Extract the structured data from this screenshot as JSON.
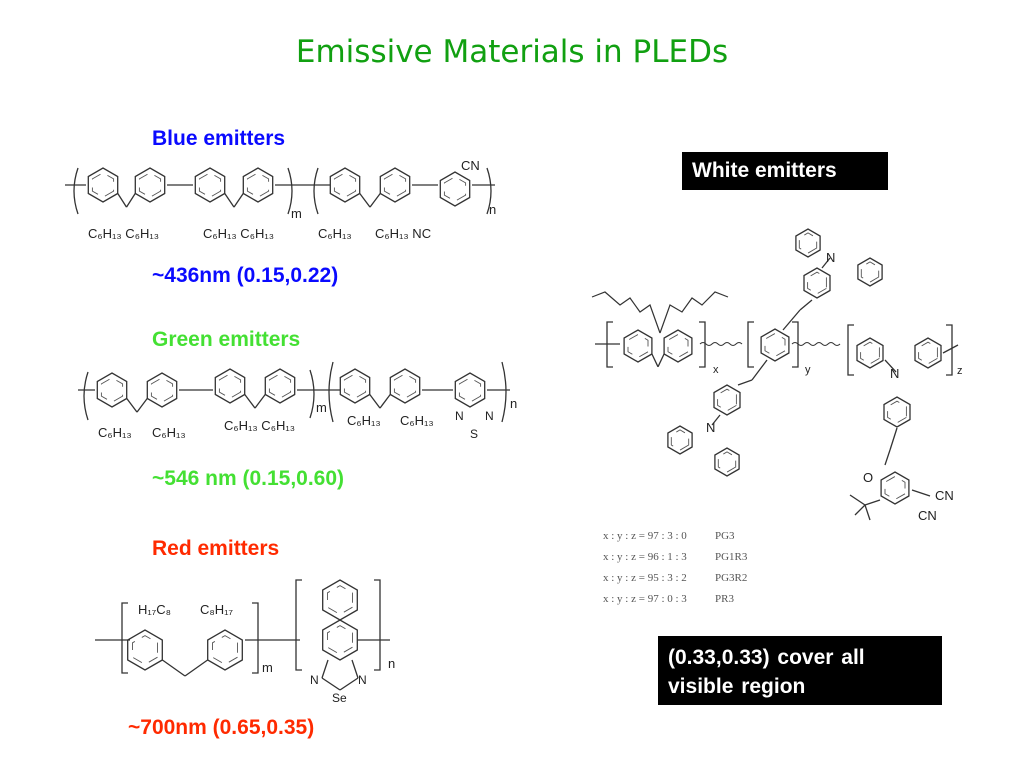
{
  "title": "Emissive Materials in PLEDs",
  "colors": {
    "title": "#11a011",
    "blue": "#0a0aff",
    "green": "#44e033",
    "red": "#ff2a00",
    "box_bg": "#000000",
    "box_text": "#ffffff"
  },
  "blue": {
    "heading": "Blue emitters",
    "value": "~436nm (0.15,0.22)",
    "labels": [
      "C₆H₁₃ C₆H₁₃",
      "C₆H₁₃ C₆H₁₃",
      "C₆H₁₃",
      "C₆H₁₃ NC",
      "CN",
      "m",
      "n"
    ]
  },
  "green": {
    "heading": "Green  emitters",
    "value": "~546 nm (0.15,0.60)",
    "labels": [
      "C₆H₁₃",
      "C₆H₁₃",
      "C₆H₁₃ C₆H₁₃",
      "C₆H₁₃",
      "C₆H₁₃",
      "N",
      "N",
      "S",
      "m",
      "n"
    ]
  },
  "red": {
    "heading": "Red  emitters",
    "value": "~700nm (0.65,0.35)",
    "labels": [
      "H₁₇C₈",
      "C₈H₁₇",
      "N",
      "N",
      "Se",
      "m",
      "n"
    ]
  },
  "white": {
    "heading": "White emitters",
    "note": "(0.33,0.33)   cover   all visible region",
    "labels": [
      "N",
      "N",
      "N",
      "O",
      "CN",
      "CN",
      "x",
      "y",
      "z"
    ],
    "ratios": [
      {
        "ratio": "x : y : z = 97 : 3 : 0",
        "name": "PG3"
      },
      {
        "ratio": "x : y : z = 96 : 1 : 3",
        "name": "PG1R3"
      },
      {
        "ratio": "x : y : z = 95 : 3 : 2",
        "name": "PG3R2"
      },
      {
        "ratio": "x : y : z = 97 : 0 : 3",
        "name": "PR3"
      }
    ]
  }
}
